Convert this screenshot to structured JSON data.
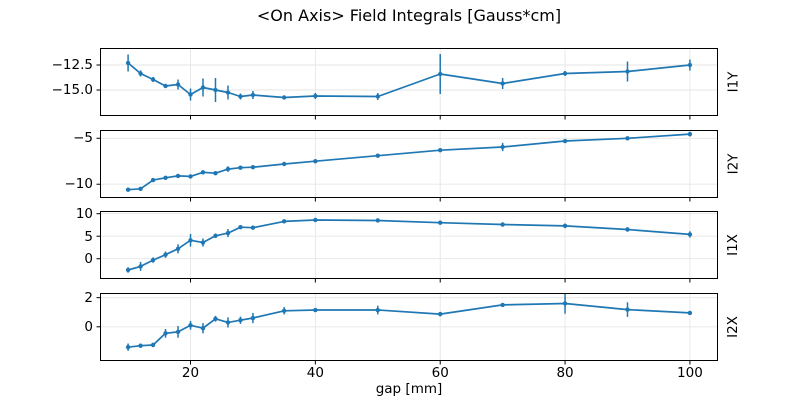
{
  "figure": {
    "title": "<On Axis> Field Integrals [Gauss*cm]",
    "xlabel": "gap [mm]",
    "line_color": "#1f77b4",
    "grid_color": "#e6e6e6",
    "spine_color": "#000000",
    "xlim": [
      5.5,
      104.5
    ],
    "x_ticks": [
      20,
      40,
      60,
      80,
      100
    ],
    "x_tick_labels": [
      "20",
      "40",
      "60",
      "80",
      "100"
    ]
  },
  "chart_data": [
    {
      "type": "line",
      "name": "I1Y",
      "ylabel_right": "I1Y",
      "x": [
        10,
        12,
        14,
        16,
        18,
        20,
        22,
        24,
        26,
        28,
        30,
        35,
        40,
        50,
        60,
        70,
        80,
        90,
        100
      ],
      "values": [
        -12.3,
        -13.35,
        -13.95,
        -14.6,
        -14.45,
        -15.45,
        -14.75,
        -15.0,
        -15.25,
        -15.65,
        -15.5,
        -15.75,
        -15.6,
        -15.65,
        -13.4,
        -14.35,
        -13.35,
        -13.15,
        -12.5
      ],
      "yerr": [
        0.85,
        0.3,
        0.25,
        0.2,
        0.5,
        0.6,
        0.9,
        1.2,
        0.7,
        0.3,
        0.4,
        0.2,
        0.3,
        0.35,
        2.0,
        0.55,
        0.25,
        1.0,
        0.55
      ],
      "ylim": [
        -17.6,
        -10.8
      ],
      "y_ticks": [
        -12.5,
        -15.0
      ],
      "y_tick_labels": [
        "−12.5",
        "−15.0"
      ]
    },
    {
      "type": "line",
      "name": "I2Y",
      "ylabel_right": "I2Y",
      "x": [
        10,
        12,
        14,
        16,
        18,
        20,
        22,
        24,
        26,
        28,
        30,
        35,
        40,
        50,
        60,
        70,
        80,
        90,
        100
      ],
      "values": [
        -10.6,
        -10.5,
        -9.55,
        -9.3,
        -9.1,
        -9.15,
        -8.7,
        -8.8,
        -8.35,
        -8.2,
        -8.15,
        -7.8,
        -7.5,
        -6.9,
        -6.3,
        -5.95,
        -5.3,
        -5.0,
        -4.55
      ],
      "yerr": [
        0.15,
        0.15,
        0.1,
        0.1,
        0.1,
        0.1,
        0.1,
        0.15,
        0.3,
        0.1,
        0.1,
        0.1,
        0.1,
        0.1,
        0.1,
        0.45,
        0.1,
        0.1,
        0.25
      ],
      "ylim": [
        -11.5,
        -4.1
      ],
      "y_ticks": [
        -5,
        -10
      ],
      "y_tick_labels": [
        "−5",
        "−10"
      ]
    },
    {
      "type": "line",
      "name": "I1X",
      "ylabel_right": "I1X",
      "x": [
        10,
        12,
        14,
        16,
        18,
        20,
        22,
        24,
        26,
        28,
        30,
        35,
        40,
        50,
        60,
        70,
        80,
        90,
        100
      ],
      "values": [
        -2.5,
        -1.7,
        -0.3,
        0.9,
        2.2,
        4.1,
        3.6,
        5.1,
        5.7,
        7.0,
        6.9,
        8.3,
        8.6,
        8.5,
        8.0,
        7.6,
        7.3,
        6.5,
        5.4
      ],
      "yerr": [
        0.6,
        1.0,
        0.6,
        0.7,
        1.0,
        1.4,
        0.9,
        0.5,
        0.9,
        0.3,
        0.4,
        0.3,
        0.3,
        0.3,
        0.4,
        0.4,
        0.5,
        0.5,
        0.7
      ],
      "ylim": [
        -4.5,
        10.6
      ],
      "y_ticks": [
        10,
        5,
        0
      ],
      "y_tick_labels": [
        "10",
        "5",
        "0"
      ]
    },
    {
      "type": "line",
      "name": "I2X",
      "ylabel_right": "I2X",
      "x": [
        10,
        12,
        14,
        16,
        18,
        20,
        22,
        24,
        26,
        28,
        30,
        35,
        40,
        50,
        60,
        70,
        80,
        90,
        100
      ],
      "values": [
        -1.4,
        -1.3,
        -1.25,
        -0.45,
        -0.35,
        0.1,
        -0.1,
        0.55,
        0.3,
        0.45,
        0.6,
        1.1,
        1.15,
        1.15,
        0.87,
        1.5,
        1.6,
        1.18,
        0.95
      ],
      "yerr": [
        0.25,
        0.15,
        0.15,
        0.3,
        0.4,
        0.3,
        0.35,
        0.2,
        0.35,
        0.25,
        0.35,
        0.25,
        0.1,
        0.3,
        0.15,
        0.12,
        0.7,
        0.5,
        0.12
      ],
      "ylim": [
        -2.35,
        2.32
      ],
      "y_ticks": [
        2,
        0
      ],
      "y_tick_labels": [
        "2",
        "0"
      ]
    }
  ]
}
